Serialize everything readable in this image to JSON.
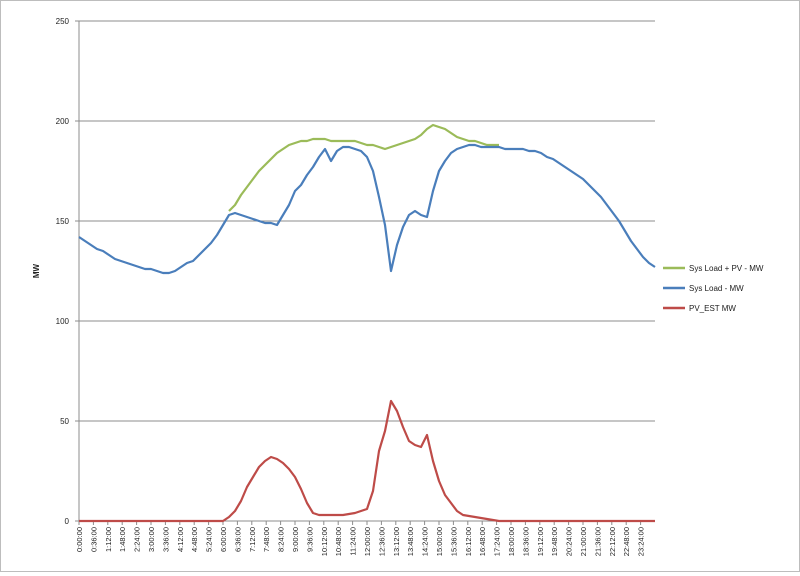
{
  "colors": {
    "sys_load_plus_pv": "#9bbb59",
    "sys_load": "#4a7ebb",
    "pv_est": "#be4b48",
    "gridline": "#8c8c8c",
    "axis": "#8c8c8c"
  },
  "chart_data": {
    "type": "line",
    "ylabel": "MW",
    "xlabel": "",
    "ylim": [
      0,
      250
    ],
    "yticks": [
      "0",
      "50",
      "100",
      "150",
      "200",
      "250"
    ],
    "grid": true,
    "legend_position": "right",
    "xticks": [
      "0:00:00",
      "0:36:00",
      "1:12:00",
      "1:48:00",
      "2:24:00",
      "3:00:00",
      "3:36:00",
      "4:12:00",
      "4:48:00",
      "5:24:00",
      "6:00:00",
      "6:36:00",
      "7:12:00",
      "7:48:00",
      "8:24:00",
      "9:00:00",
      "9:36:00",
      "10:12:00",
      "10:48:00",
      "11:24:00",
      "12:00:00",
      "12:36:00",
      "13:12:00",
      "13:48:00",
      "14:24:00",
      "15:00:00",
      "15:36:00",
      "16:12:00",
      "16:48:00",
      "17:24:00",
      "18:00:00",
      "18:36:00",
      "19:12:00",
      "19:48:00",
      "20:24:00",
      "21:00:00",
      "21:36:00",
      "22:12:00",
      "22:48:00",
      "23:24:00"
    ],
    "series": [
      {
        "name": "Sys Load + PV - MW",
        "color_key": "sys_load_plus_pv",
        "points": [
          [
            6.25,
            155
          ],
          [
            6.5,
            158
          ],
          [
            6.75,
            163
          ],
          [
            7.0,
            167
          ],
          [
            7.25,
            171
          ],
          [
            7.5,
            175
          ],
          [
            7.75,
            178
          ],
          [
            8.0,
            181
          ],
          [
            8.25,
            184
          ],
          [
            8.5,
            186
          ],
          [
            8.75,
            188
          ],
          [
            9.0,
            189
          ],
          [
            9.25,
            190
          ],
          [
            9.5,
            190
          ],
          [
            9.75,
            191
          ],
          [
            10.0,
            191
          ],
          [
            10.25,
            191
          ],
          [
            10.5,
            190
          ],
          [
            10.75,
            190
          ],
          [
            11.0,
            190
          ],
          [
            11.25,
            190
          ],
          [
            11.5,
            190
          ],
          [
            11.75,
            189
          ],
          [
            12.0,
            188
          ],
          [
            12.25,
            188
          ],
          [
            12.5,
            187
          ],
          [
            12.75,
            186
          ],
          [
            13.0,
            187
          ],
          [
            13.25,
            188
          ],
          [
            13.5,
            189
          ],
          [
            13.75,
            190
          ],
          [
            14.0,
            191
          ],
          [
            14.25,
            193
          ],
          [
            14.5,
            196
          ],
          [
            14.75,
            198
          ],
          [
            15.0,
            197
          ],
          [
            15.25,
            196
          ],
          [
            15.5,
            194
          ],
          [
            15.75,
            192
          ],
          [
            16.0,
            191
          ],
          [
            16.25,
            190
          ],
          [
            16.5,
            190
          ],
          [
            16.75,
            189
          ],
          [
            17.0,
            188
          ],
          [
            17.25,
            188
          ],
          [
            17.5,
            188
          ]
        ]
      },
      {
        "name": "Sys Load - MW",
        "color_key": "sys_load",
        "points": [
          [
            0.0,
            142
          ],
          [
            0.25,
            140
          ],
          [
            0.5,
            138
          ],
          [
            0.75,
            136
          ],
          [
            1.0,
            135
          ],
          [
            1.25,
            133
          ],
          [
            1.5,
            131
          ],
          [
            1.75,
            130
          ],
          [
            2.0,
            129
          ],
          [
            2.25,
            128
          ],
          [
            2.5,
            127
          ],
          [
            2.75,
            126
          ],
          [
            3.0,
            126
          ],
          [
            3.25,
            125
          ],
          [
            3.5,
            124
          ],
          [
            3.75,
            124
          ],
          [
            4.0,
            125
          ],
          [
            4.25,
            127
          ],
          [
            4.5,
            129
          ],
          [
            4.75,
            130
          ],
          [
            5.0,
            133
          ],
          [
            5.25,
            136
          ],
          [
            5.5,
            139
          ],
          [
            5.75,
            143
          ],
          [
            6.0,
            148
          ],
          [
            6.25,
            153
          ],
          [
            6.5,
            154
          ],
          [
            6.75,
            153
          ],
          [
            7.0,
            152
          ],
          [
            7.25,
            151
          ],
          [
            7.5,
            150
          ],
          [
            7.75,
            149
          ],
          [
            8.0,
            149
          ],
          [
            8.25,
            148
          ],
          [
            8.5,
            153
          ],
          [
            8.75,
            158
          ],
          [
            9.0,
            165
          ],
          [
            9.25,
            168
          ],
          [
            9.5,
            173
          ],
          [
            9.75,
            177
          ],
          [
            10.0,
            182
          ],
          [
            10.25,
            186
          ],
          [
            10.5,
            180
          ],
          [
            10.75,
            185
          ],
          [
            11.0,
            187
          ],
          [
            11.25,
            187
          ],
          [
            11.5,
            186
          ],
          [
            11.75,
            185
          ],
          [
            12.0,
            182
          ],
          [
            12.25,
            175
          ],
          [
            12.5,
            162
          ],
          [
            12.75,
            148
          ],
          [
            13.0,
            125
          ],
          [
            13.25,
            138
          ],
          [
            13.5,
            147
          ],
          [
            13.75,
            153
          ],
          [
            14.0,
            155
          ],
          [
            14.25,
            153
          ],
          [
            14.5,
            152
          ],
          [
            14.75,
            165
          ],
          [
            15.0,
            175
          ],
          [
            15.25,
            180
          ],
          [
            15.5,
            184
          ],
          [
            15.75,
            186
          ],
          [
            16.0,
            187
          ],
          [
            16.25,
            188
          ],
          [
            16.5,
            188
          ],
          [
            16.75,
            187
          ],
          [
            17.0,
            187
          ],
          [
            17.25,
            187
          ],
          [
            17.5,
            187
          ],
          [
            17.75,
            186
          ],
          [
            18.0,
            186
          ],
          [
            18.25,
            186
          ],
          [
            18.5,
            186
          ],
          [
            18.75,
            185
          ],
          [
            19.0,
            185
          ],
          [
            19.25,
            184
          ],
          [
            19.5,
            182
          ],
          [
            19.75,
            181
          ],
          [
            20.0,
            179
          ],
          [
            20.25,
            177
          ],
          [
            20.5,
            175
          ],
          [
            20.75,
            173
          ],
          [
            21.0,
            171
          ],
          [
            21.25,
            168
          ],
          [
            21.5,
            165
          ],
          [
            21.75,
            162
          ],
          [
            22.0,
            158
          ],
          [
            22.25,
            154
          ],
          [
            22.5,
            150
          ],
          [
            22.75,
            145
          ],
          [
            23.0,
            140
          ],
          [
            23.25,
            136
          ],
          [
            23.5,
            132
          ],
          [
            23.75,
            129
          ],
          [
            24.0,
            127
          ]
        ]
      },
      {
        "name": "PV_EST   MW",
        "color_key": "pv_est",
        "points": [
          [
            0.0,
            0
          ],
          [
            6.0,
            0
          ],
          [
            6.25,
            2
          ],
          [
            6.5,
            5
          ],
          [
            6.75,
            10
          ],
          [
            7.0,
            17
          ],
          [
            7.25,
            22
          ],
          [
            7.5,
            27
          ],
          [
            7.75,
            30
          ],
          [
            8.0,
            32
          ],
          [
            8.25,
            31
          ],
          [
            8.5,
            29
          ],
          [
            8.75,
            26
          ],
          [
            9.0,
            22
          ],
          [
            9.25,
            16
          ],
          [
            9.5,
            9
          ],
          [
            9.75,
            4
          ],
          [
            10.0,
            3
          ],
          [
            10.5,
            3
          ],
          [
            11.0,
            3
          ],
          [
            11.5,
            4
          ],
          [
            12.0,
            6
          ],
          [
            12.25,
            15
          ],
          [
            12.5,
            35
          ],
          [
            12.75,
            45
          ],
          [
            13.0,
            60
          ],
          [
            13.25,
            55
          ],
          [
            13.5,
            47
          ],
          [
            13.75,
            40
          ],
          [
            14.0,
            38
          ],
          [
            14.25,
            37
          ],
          [
            14.5,
            43
          ],
          [
            14.75,
            30
          ],
          [
            15.0,
            20
          ],
          [
            15.25,
            13
          ],
          [
            15.5,
            9
          ],
          [
            15.75,
            5
          ],
          [
            16.0,
            3
          ],
          [
            16.5,
            2
          ],
          [
            17.0,
            1
          ],
          [
            17.5,
            0
          ],
          [
            24.0,
            0
          ]
        ]
      }
    ]
  }
}
